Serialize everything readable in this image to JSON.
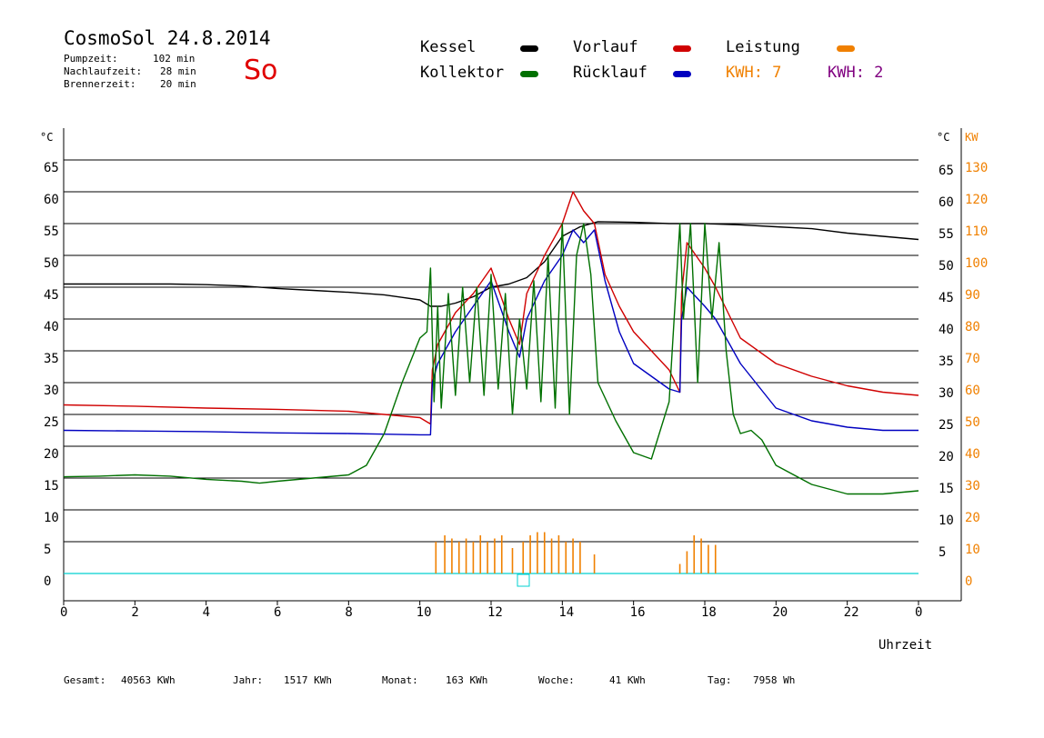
{
  "header": {
    "title": "CosmoSol 24.8.2014",
    "stats": [
      {
        "label": "Pumpzeit:",
        "value": "102 min"
      },
      {
        "label": "Nachlaufzeit:",
        "value": "28 min"
      },
      {
        "label": "Brennerzeit:",
        "value": "20 min"
      }
    ],
    "day": "So"
  },
  "legend": {
    "kessel": "Kessel",
    "kollektor": "Kollektor",
    "vorlauf": "Vorlauf",
    "ruecklauf": "Rücklauf",
    "leistung": "Leistung",
    "kwh1": "KWH: 7",
    "kwh2": "KWH: 2"
  },
  "footer": {
    "gesamt_label": "Gesamt:",
    "gesamt": "40563 KWh",
    "jahr_label": "Jahr:",
    "jahr": "1517 KWh",
    "monat_label": "Monat:",
    "monat": "163 KWh",
    "woche_label": "Woche:",
    "woche": "41 KWh",
    "tag_label": "Tag:",
    "tag": "7958 Wh"
  },
  "colors": {
    "kessel": "#000000",
    "kollektor": "#007000",
    "vorlauf": "#d00000",
    "ruecklauf": "#0000c0",
    "leistung": "#f08000",
    "kwh2": "#800080",
    "zero_line": "#00d0d0"
  },
  "chart_data": {
    "type": "line",
    "xlabel": "Uhrzeit",
    "x_ticks": [
      "0",
      "2",
      "4",
      "6",
      "8",
      "10",
      "12",
      "14",
      "16",
      "18",
      "20",
      "22",
      "0"
    ],
    "xlim": [
      0,
      24
    ],
    "ylabel_left": "°C",
    "ylabel_right": "°C",
    "ylabel_right2": "KW",
    "ylim": [
      0,
      65
    ],
    "y_ticks_left": [
      0,
      5,
      10,
      15,
      20,
      25,
      30,
      35,
      40,
      45,
      50,
      55,
      60,
      65
    ],
    "y_ticks_right": [
      5,
      10,
      15,
      20,
      25,
      30,
      35,
      40,
      45,
      50,
      55,
      60,
      65
    ],
    "y_ticks_kw": [
      0,
      10,
      20,
      30,
      40,
      50,
      60,
      70,
      80,
      90,
      100,
      110,
      120,
      130
    ],
    "grid": true,
    "series": [
      {
        "name": "Kessel",
        "color": "#000000",
        "x": [
          0,
          1,
          2,
          3,
          4,
          5,
          6,
          7,
          8,
          9,
          9.5,
          10,
          10.3,
          10.6,
          11,
          11.5,
          12,
          12.5,
          13,
          13.5,
          14,
          14.5,
          15,
          16,
          17,
          18,
          19,
          20,
          21,
          22,
          23,
          24
        ],
        "y": [
          45.5,
          45.5,
          45.5,
          45.5,
          45.4,
          45.2,
          44.8,
          44.5,
          44.2,
          43.8,
          43.4,
          43,
          42,
          42,
          42.5,
          43.5,
          45,
          45.5,
          46.5,
          49,
          53,
          54.5,
          55.3,
          55.2,
          55,
          55,
          54.8,
          54.5,
          54.2,
          53.5,
          53,
          52.5
        ]
      },
      {
        "name": "Vorlauf",
        "color": "#d00000",
        "x": [
          0,
          2,
          4,
          6,
          8,
          9,
          10,
          10.3,
          10.35,
          10.5,
          11,
          11.5,
          12,
          12.5,
          12.8,
          13,
          13.5,
          14,
          14.3,
          14.6,
          14.9,
          15.2,
          15.6,
          16,
          17,
          17.3,
          17.35,
          17.5,
          18,
          18.3,
          19,
          20,
          21,
          22,
          23,
          24
        ],
        "y": [
          26.5,
          26.3,
          26,
          25.8,
          25.5,
          25,
          24.5,
          23.5,
          32,
          36,
          41,
          44,
          48,
          40,
          36,
          44,
          50,
          55,
          60,
          57,
          55,
          47,
          42,
          38,
          32,
          28.5,
          44,
          52,
          48,
          45,
          37,
          33,
          31,
          29.5,
          28.5,
          28
        ]
      },
      {
        "name": "Rücklauf",
        "color": "#0000c0",
        "x": [
          0,
          2,
          4,
          6,
          8,
          9,
          10,
          10.3,
          10.35,
          10.5,
          11,
          11.5,
          12,
          12.5,
          12.8,
          13,
          13.5,
          14,
          14.3,
          14.6,
          14.9,
          15.2,
          15.6,
          16,
          17,
          17.3,
          17.35,
          17.5,
          18,
          18.3,
          19,
          20,
          21,
          22,
          23,
          24
        ],
        "y": [
          22.5,
          22.4,
          22.3,
          22.1,
          22,
          21.9,
          21.8,
          21.8,
          30,
          33,
          38,
          42,
          46,
          38,
          34,
          40,
          46,
          50,
          54,
          52,
          54,
          46,
          38,
          33,
          29,
          28.5,
          40,
          45,
          42,
          40,
          33,
          26,
          24,
          23,
          22.5,
          22.5
        ]
      },
      {
        "name": "Kollektor",
        "color": "#007000",
        "x": [
          0,
          1,
          2,
          3,
          4,
          5,
          5.5,
          6,
          7,
          8,
          8.5,
          9,
          9.5,
          10,
          10.2,
          10.3,
          10.4,
          10.5,
          10.6,
          10.8,
          11,
          11.2,
          11.4,
          11.6,
          11.8,
          12,
          12.2,
          12.4,
          12.6,
          12.8,
          13,
          13.2,
          13.4,
          13.6,
          13.8,
          14,
          14.2,
          14.4,
          14.6,
          14.8,
          15,
          15.5,
          16,
          16.5,
          17,
          17.3,
          17.4,
          17.6,
          17.8,
          18,
          18.2,
          18.4,
          18.6,
          18.8,
          19,
          19.3,
          19.6,
          20,
          21,
          22,
          23,
          24
        ],
        "y": [
          15.2,
          15.3,
          15.5,
          15.3,
          14.8,
          14.5,
          14.2,
          14.5,
          15,
          15.5,
          17,
          22,
          30,
          37,
          38,
          48,
          27,
          42,
          26,
          44,
          28,
          45,
          30,
          45,
          28,
          47,
          29,
          44,
          25,
          40,
          29,
          46,
          27,
          50,
          26,
          55,
          25,
          50,
          55,
          47,
          30,
          24,
          19,
          18,
          27,
          55,
          40,
          55,
          30,
          55,
          40,
          52,
          35,
          25,
          22,
          22.5,
          21,
          17,
          14,
          12.5,
          12.5,
          13
        ]
      }
    ],
    "power_series": {
      "name": "Leistung",
      "color": "#f08000",
      "unit": "KW",
      "x": [
        10.45,
        10.7,
        10.9,
        11.1,
        11.3,
        11.5,
        11.7,
        11.9,
        12.1,
        12.3,
        12.6,
        12.9,
        13.1,
        13.3,
        13.5,
        13.7,
        13.9,
        14.1,
        14.3,
        14.5,
        14.9,
        17.3,
        17.5,
        17.7,
        17.9,
        18.1,
        18.3
      ],
      "y": [
        10,
        12,
        11,
        10,
        11,
        10,
        12,
        10,
        11,
        12,
        8,
        10,
        12,
        13,
        13,
        11,
        12,
        10,
        11,
        10,
        6,
        3,
        7,
        12,
        11,
        9,
        9
      ]
    }
  }
}
